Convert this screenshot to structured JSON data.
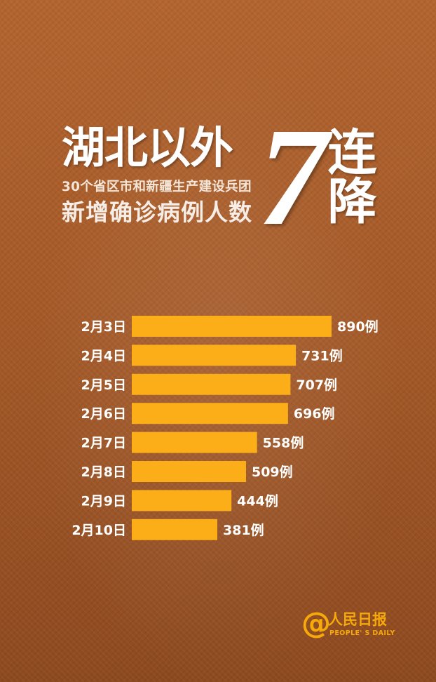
{
  "header": {
    "title_main": "湖北以外",
    "title_sub": "30个省区市和新疆生产建设兵团",
    "title_mid": "新增确诊病例人数",
    "big_number": "7",
    "side_word": "连降"
  },
  "chart_data": {
    "type": "bar",
    "orientation": "horizontal",
    "categories": [
      "2月3日",
      "2月4日",
      "2月5日",
      "2月6日",
      "2月7日",
      "2月8日",
      "2月9日",
      "2月10日"
    ],
    "values": [
      890,
      731,
      707,
      696,
      558,
      509,
      444,
      381
    ],
    "value_labels": [
      "890例",
      "731例",
      "707例",
      "696例",
      "558例",
      "509例",
      "444例",
      "381例"
    ],
    "bar_color": "#fbae17"
  },
  "footer": {
    "logo_symbol": "@",
    "logo_name": "人民日报",
    "logo_en": "PEOPLE' S DAILY",
    "logo_color": "#f5a90b"
  }
}
